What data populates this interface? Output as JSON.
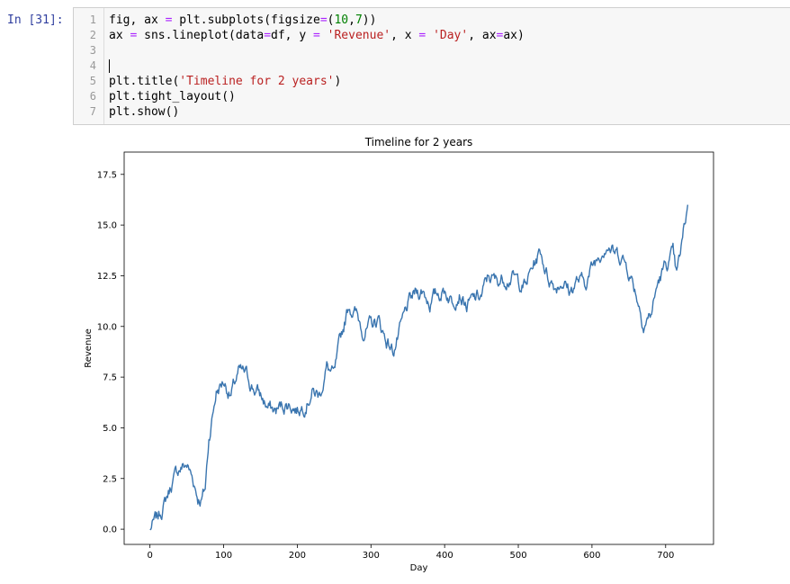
{
  "cell": {
    "prompt": "In [31]:",
    "lines": [
      {
        "num": "1",
        "tokens": [
          {
            "t": "fig, ax "
          },
          {
            "t": "=",
            "c": "op"
          },
          {
            "t": " plt.subplots(figsize"
          },
          {
            "t": "=",
            "c": "op"
          },
          {
            "t": "("
          },
          {
            "t": "10",
            "c": "num"
          },
          {
            "t": ","
          },
          {
            "t": "7",
            "c": "num"
          },
          {
            "t": "))"
          }
        ]
      },
      {
        "num": "2",
        "tokens": [
          {
            "t": "ax "
          },
          {
            "t": "=",
            "c": "op"
          },
          {
            "t": " sns.lineplot(data"
          },
          {
            "t": "=",
            "c": "op"
          },
          {
            "t": "df, y "
          },
          {
            "t": "=",
            "c": "op"
          },
          {
            "t": " "
          },
          {
            "t": "'Revenue'",
            "c": "str"
          },
          {
            "t": ", x "
          },
          {
            "t": "=",
            "c": "op"
          },
          {
            "t": " "
          },
          {
            "t": "'Day'",
            "c": "str"
          },
          {
            "t": ", ax"
          },
          {
            "t": "=",
            "c": "op"
          },
          {
            "t": "ax)"
          }
        ]
      },
      {
        "num": "3",
        "tokens": []
      },
      {
        "num": "4",
        "tokens": [],
        "cursor": true
      },
      {
        "num": "5",
        "tokens": [
          {
            "t": "plt.title("
          },
          {
            "t": "'Timeline for 2 years'",
            "c": "str"
          },
          {
            "t": ")"
          }
        ]
      },
      {
        "num": "6",
        "tokens": [
          {
            "t": "plt.tight_layout()"
          }
        ]
      },
      {
        "num": "7",
        "tokens": [
          {
            "t": "plt.show()"
          }
        ]
      }
    ]
  },
  "chart_data": {
    "type": "line",
    "title": "Timeline for 2 years",
    "xlabel": "Day",
    "ylabel": "Revenue",
    "xlim": [
      -35,
      765
    ],
    "ylim": [
      -0.75,
      18.6
    ],
    "xticks": [
      0,
      100,
      200,
      300,
      400,
      500,
      600,
      700
    ],
    "yticks": [
      0.0,
      2.5,
      5.0,
      7.5,
      10.0,
      12.5,
      15.0,
      17.5
    ],
    "ytick_labels": [
      "0.0",
      "2.5",
      "5.0",
      "7.5",
      "10.0",
      "12.5",
      "15.0",
      "17.5"
    ],
    "grid": false,
    "line_color": "#3a75af",
    "series": [
      {
        "x": [
          0,
          10,
          20,
          30,
          40,
          50,
          60,
          65,
          70,
          75,
          80,
          90,
          100,
          110,
          120,
          130,
          140,
          150,
          160,
          170,
          180,
          190,
          200,
          210,
          220,
          230,
          240,
          250,
          260,
          270,
          280,
          290,
          300,
          310,
          320,
          330,
          340,
          350,
          360,
          370,
          380,
          390,
          400,
          410,
          420,
          430,
          440,
          450,
          460,
          470,
          480,
          490,
          500,
          510,
          520,
          530,
          540,
          550,
          560,
          570,
          580,
          590,
          600,
          610,
          620,
          630,
          640,
          650,
          660,
          670,
          680,
          690,
          700,
          710,
          715,
          720,
          730
        ],
        "values": [
          0.0,
          0.5,
          1.3,
          2.3,
          3.0,
          3.2,
          2.3,
          1.6,
          1.5,
          2.0,
          4.5,
          6.8,
          7.3,
          6.6,
          7.7,
          7.6,
          7.0,
          6.6,
          6.0,
          5.8,
          6.1,
          6.2,
          5.9,
          6.2,
          6.8,
          6.6,
          8.0,
          7.5,
          9.5,
          11.1,
          10.6,
          9.8,
          10.0,
          10.3,
          9.4,
          8.8,
          9.8,
          11.0,
          11.6,
          11.8,
          11.2,
          11.6,
          11.8,
          11.3,
          11.8,
          11.0,
          11.3,
          11.5,
          12.5,
          12.2,
          12.4,
          12.5,
          12.2,
          12.0,
          13.0,
          13.7,
          12.5,
          12.0,
          12.3,
          11.7,
          12.3,
          12.1,
          12.9,
          13.6,
          14.2,
          13.6,
          13.5,
          12.8,
          11.7,
          10.2,
          10.6,
          12.2,
          13.0,
          13.5,
          12.4,
          13.5,
          16.0
        ]
      }
    ]
  }
}
